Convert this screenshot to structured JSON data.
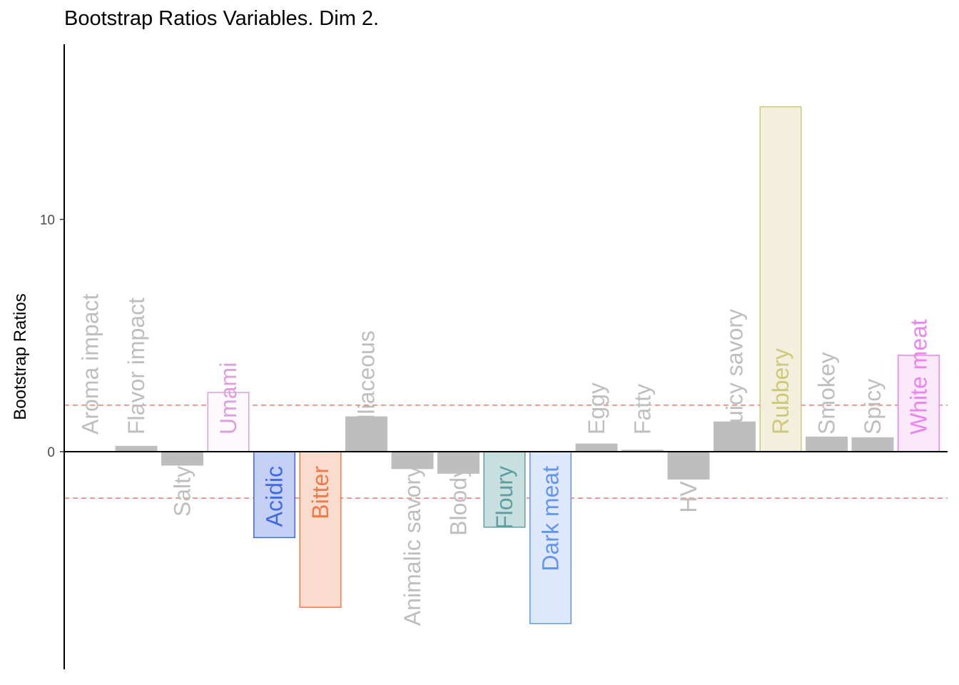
{
  "chart_data": {
    "type": "bar",
    "title": "Bootstrap Ratios Variables. Dim 2.",
    "xlabel": "",
    "ylabel": "Bootstrap Ratios",
    "ylim": [
      -9.3,
      17.5
    ],
    "yticks": [
      0,
      10
    ],
    "threshold_lines": [
      2,
      -2
    ],
    "threshold_color": "#F8766D",
    "grid": false,
    "categories": [
      "Aroma impact",
      "Flavor impact",
      "Salty",
      "Umami",
      "Acidic",
      "Bitter",
      "Alliaceous",
      "Animalic savory",
      "Bloody",
      "Floury",
      "Dark meat",
      "Eggy",
      "Fatty",
      "HVP",
      "Juicy savory",
      "Rubbery",
      "Smokey",
      "Spicy",
      "White meat"
    ],
    "values": [
      0.02,
      0.25,
      -0.6,
      2.55,
      -3.7,
      -6.7,
      1.52,
      -0.75,
      -0.95,
      -3.25,
      -7.4,
      0.35,
      0.08,
      -1.2,
      1.3,
      14.85,
      0.65,
      0.62,
      4.15
    ],
    "bar_fill": [
      "#BEBEBE",
      "#BEBEBE",
      "#BEBEBE",
      "#FCF8FC",
      "#C4D0F5",
      "#FADCCF",
      "#BEBEBE",
      "#BEBEBE",
      "#BEBEBE",
      "#C8DFE0",
      "#DDE8FA",
      "#BEBEBE",
      "#BEBEBE",
      "#BEBEBE",
      "#BEBEBE",
      "#F2F0DC",
      "#BEBEBE",
      "#BEBEBE",
      "#FAEAF9"
    ],
    "bar_stroke": [
      "#BEBEBE",
      "#BEBEBE",
      "#BEBEBE",
      "#DDA0DD",
      "#4169E1",
      "#F07A47",
      "#BEBEBE",
      "#BEBEBE",
      "#BEBEBE",
      "#5F9EA0",
      "#6495ED",
      "#BEBEBE",
      "#BEBEBE",
      "#BEBEBE",
      "#BEBEBE",
      "#CFC77A",
      "#BEBEBE",
      "#BEBEBE",
      "#EE82EE"
    ],
    "label_colors": [
      "#BEBEBE",
      "#BEBEBE",
      "#BEBEBE",
      "#DDA0DD",
      "#4169E1",
      "#F07A47",
      "#BEBEBE",
      "#BEBEBE",
      "#BEBEBE",
      "#5F9EA0",
      "#6495ED",
      "#BEBEBE",
      "#BEBEBE",
      "#BEBEBE",
      "#BEBEBE",
      "#CFC77A",
      "#BEBEBE",
      "#BEBEBE",
      "#EE82EE"
    ]
  }
}
